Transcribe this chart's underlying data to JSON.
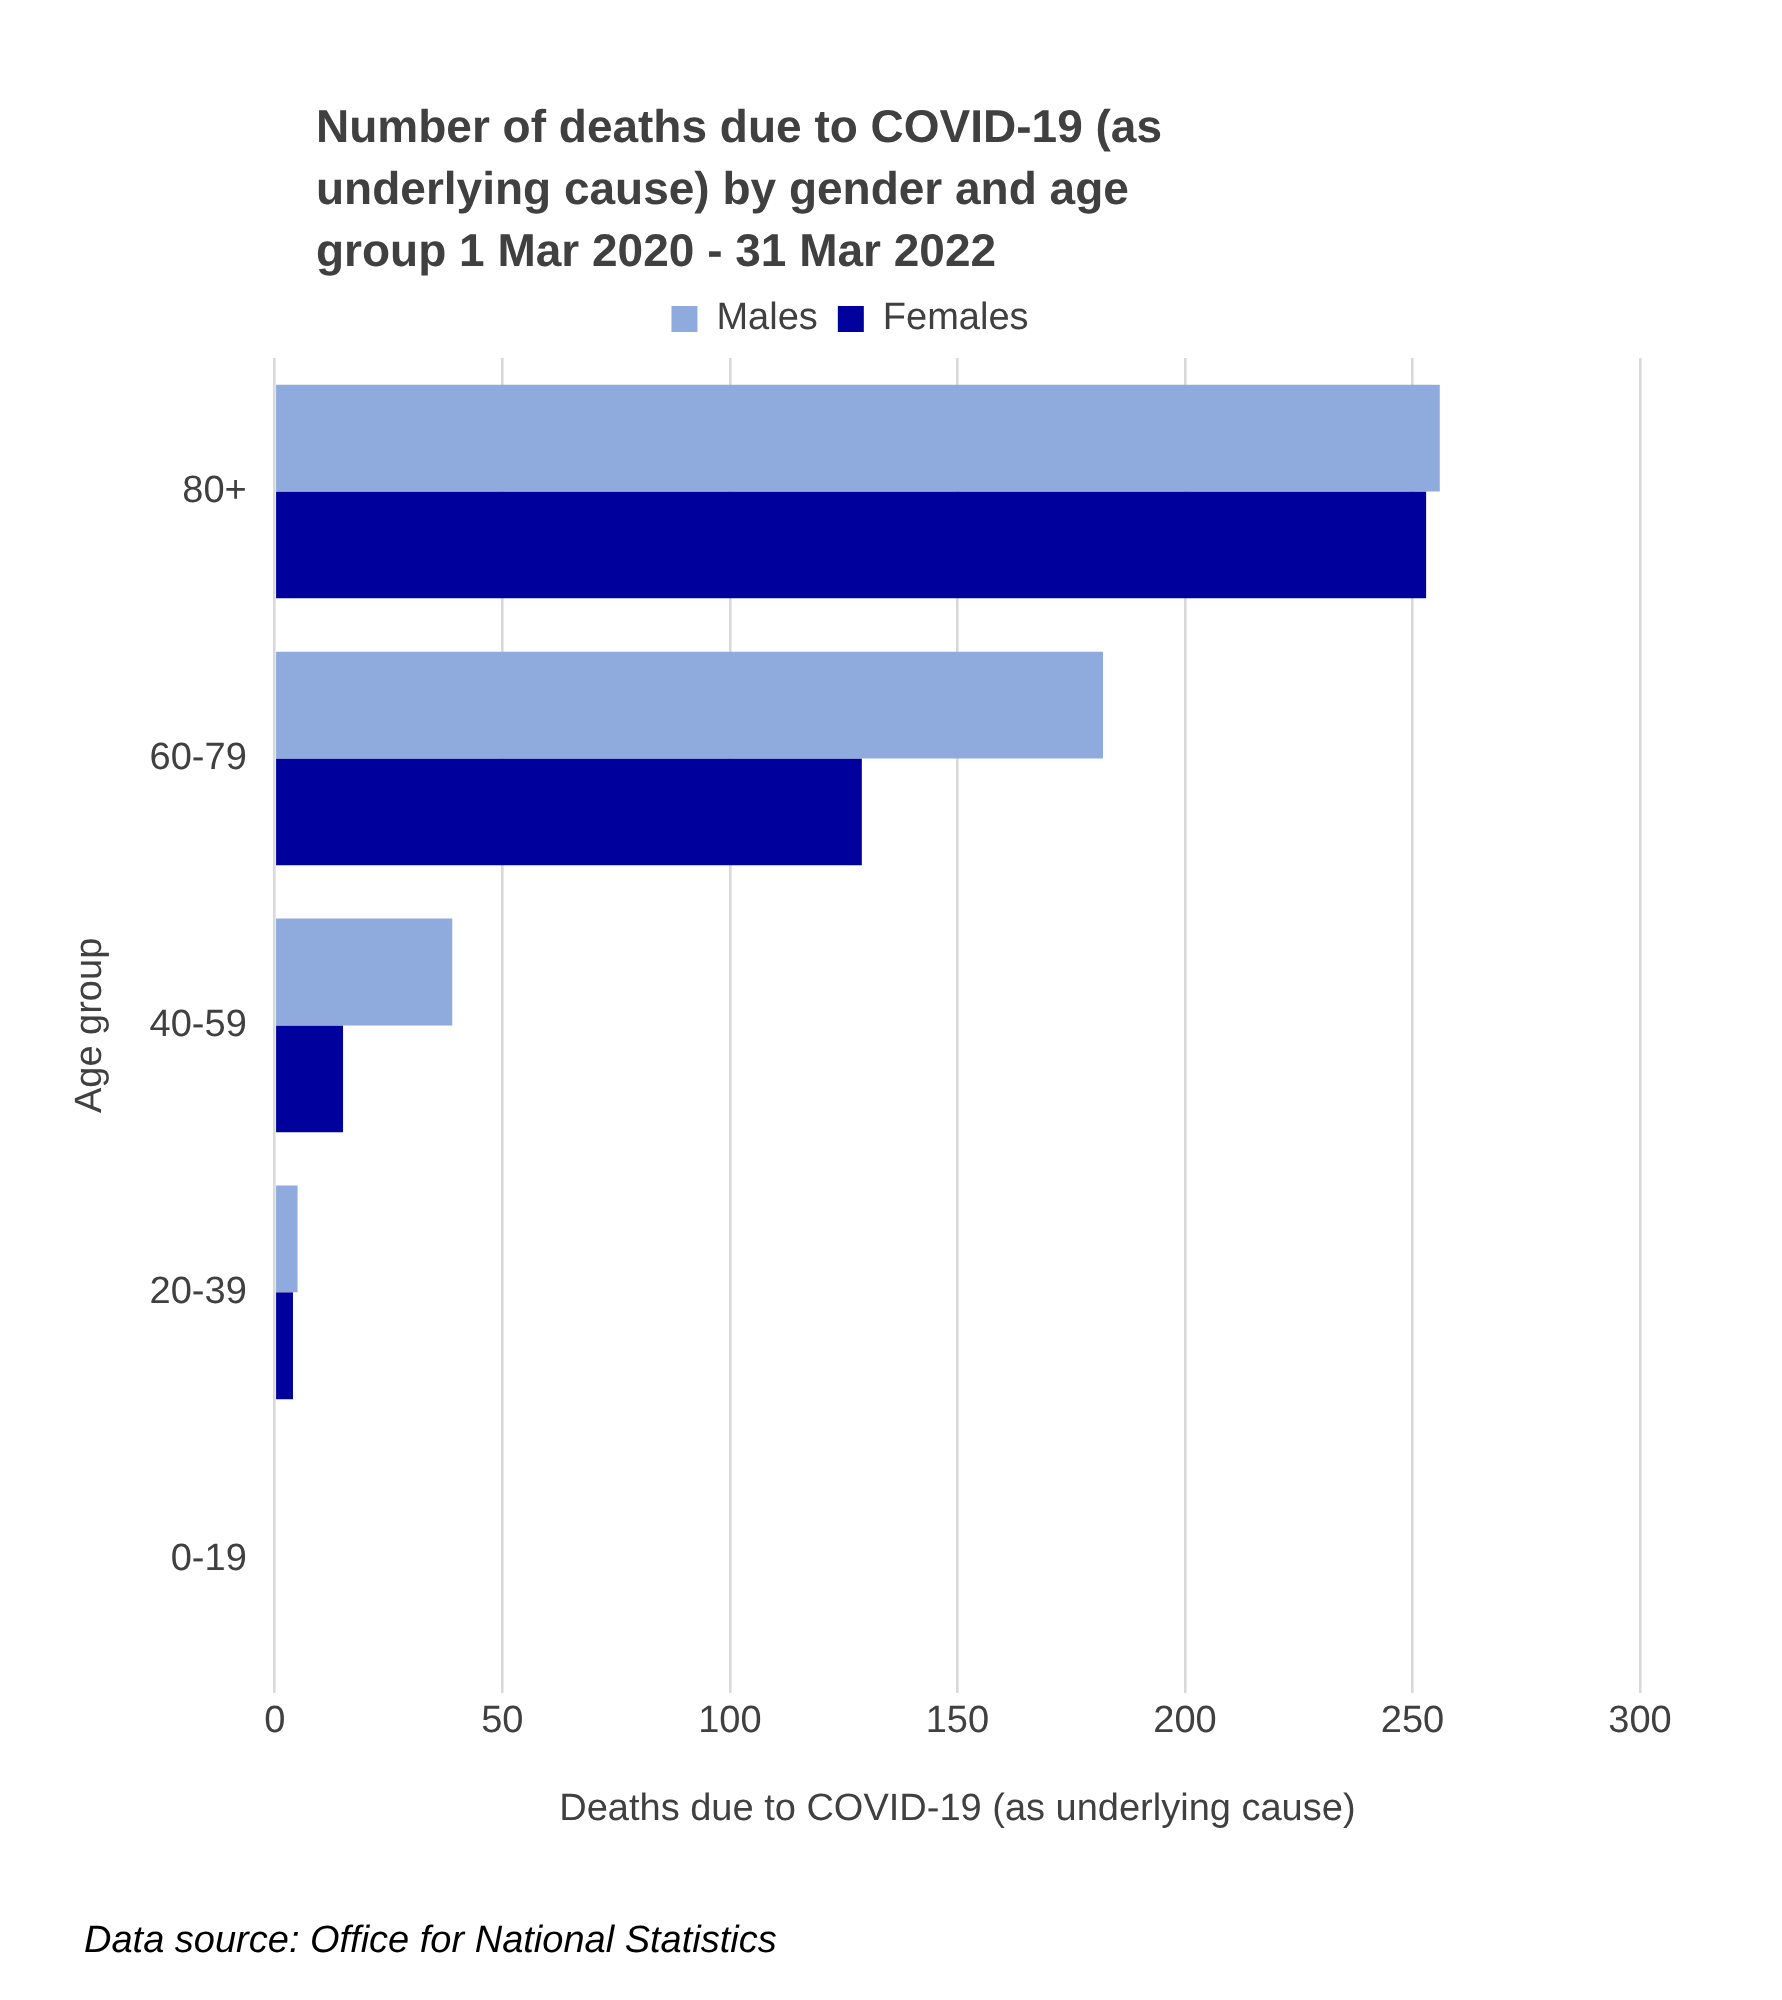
{
  "chart_data": {
    "type": "bar",
    "orientation": "horizontal",
    "title": "Number of deaths due to COVID-19 (as underlying cause) by gender and age group 1 Mar 2020 - 31 Mar 2022",
    "xlabel": "Deaths due to COVID-19 (as underlying cause)",
    "ylabel": "Age group",
    "categories": [
      "80+",
      "60-79",
      "40-59",
      "20-39",
      "0-19"
    ],
    "series": [
      {
        "name": "Males",
        "color": "#8faadc",
        "values": [
          256,
          182,
          39,
          5,
          0
        ]
      },
      {
        "name": "Females",
        "color": "#00009c",
        "values": [
          253,
          129,
          15,
          4,
          0
        ]
      }
    ],
    "xlim": [
      0,
      300
    ],
    "xticks": [
      0,
      50,
      100,
      150,
      200,
      250,
      300
    ],
    "grid": "x",
    "legend": "top",
    "annotations": [
      "Data source: Office for National Statistics"
    ]
  }
}
